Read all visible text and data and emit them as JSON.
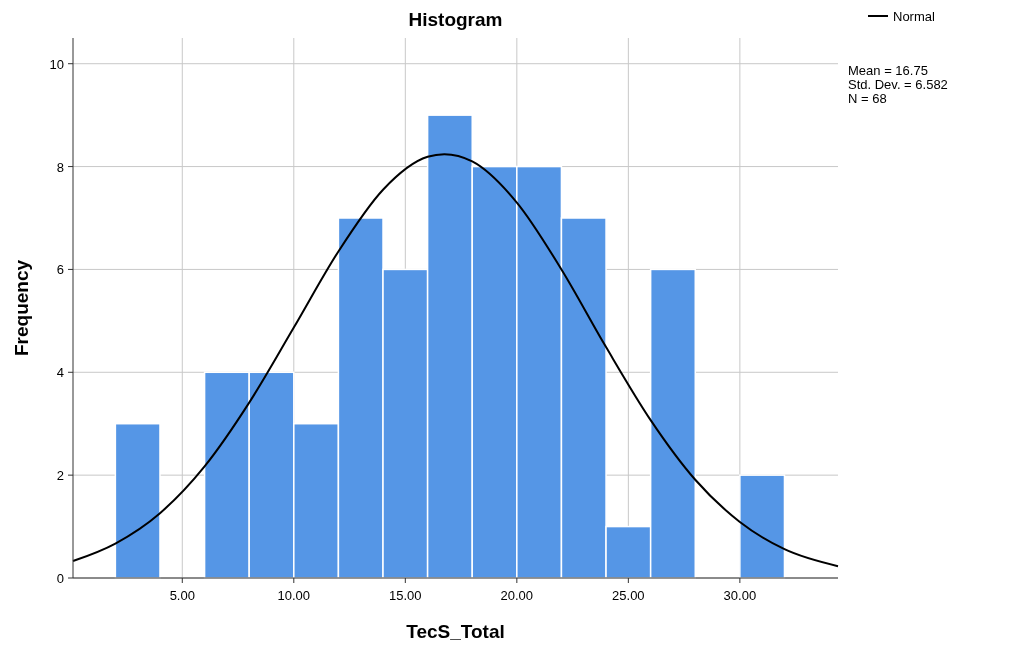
{
  "chart_data": {
    "type": "histogram",
    "title": "Histogram",
    "xlabel": "TecS_Total",
    "ylabel": "Frequency",
    "bins": [
      2,
      4,
      6,
      8,
      10,
      12,
      14,
      16,
      18,
      20,
      22,
      24,
      26,
      28,
      30,
      32
    ],
    "values": [
      3,
      0,
      4,
      4,
      3,
      7,
      6,
      9,
      8,
      8,
      7,
      1,
      6,
      0,
      2
    ],
    "color": "#5596e6",
    "series": [
      {
        "type": "line",
        "name": "Normal",
        "color": "#000000",
        "x": [
          0.1,
          2,
          4,
          6,
          8,
          10,
          12,
          14,
          16,
          16.75,
          18,
          20,
          22,
          24,
          26,
          28,
          30,
          32,
          34.4
        ],
        "values": [
          0.33,
          0.67,
          1.26,
          2.17,
          3.41,
          4.87,
          6.35,
          7.55,
          8.19,
          8.24,
          8.1,
          7.3,
          6.0,
          4.49,
          3.07,
          1.91,
          1.09,
          0.56,
          0.23
        ]
      }
    ],
    "xlim": [
      0.1,
      34.4
    ],
    "ylim": [
      0,
      10.5
    ],
    "xticks": [
      {
        "value": 5,
        "label": "5.00"
      },
      {
        "value": 10,
        "label": "10.00"
      },
      {
        "value": 15,
        "label": "15.00"
      },
      {
        "value": 20,
        "label": "20.00"
      },
      {
        "value": 25,
        "label": "25.00"
      },
      {
        "value": 30,
        "label": "30.00"
      }
    ],
    "yticks": [
      0,
      2,
      4,
      6,
      8,
      10
    ],
    "grid": true,
    "legend": "top right",
    "line_style": "solid",
    "marker": "none",
    "annotations": [
      "Mean = 16.75",
      "Std. Dev. = 6.582",
      "N = 68"
    ]
  }
}
